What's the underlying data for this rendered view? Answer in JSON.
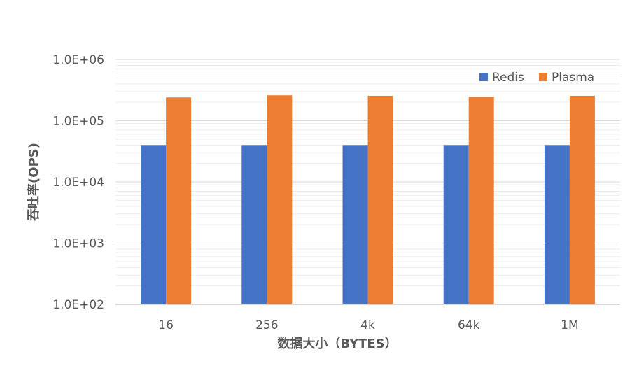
{
  "chart_data": {
    "type": "bar",
    "yscale": "log",
    "ylim": [
      100,
      1000000
    ],
    "yticks": [
      100,
      1000,
      10000,
      100000,
      1000000
    ],
    "ytick_labels": [
      "1.0E+02",
      "1.0E+03",
      "1.0E+04",
      "1.0E+05",
      "1.0E+06"
    ],
    "categories": [
      "16",
      "256",
      "4k",
      "64k",
      "1M"
    ],
    "xlabel": "数据大小（BYTES）",
    "ylabel": "吞吐率(OPS)",
    "legend_position": "top-right",
    "grid": true,
    "series": [
      {
        "name": "Redis",
        "color": "#4472C4",
        "values": [
          40000,
          40000,
          40000,
          40000,
          40000
        ]
      },
      {
        "name": "Plasma",
        "color": "#ED7D31",
        "values": [
          240000,
          260000,
          255000,
          245000,
          255000
        ]
      }
    ]
  }
}
